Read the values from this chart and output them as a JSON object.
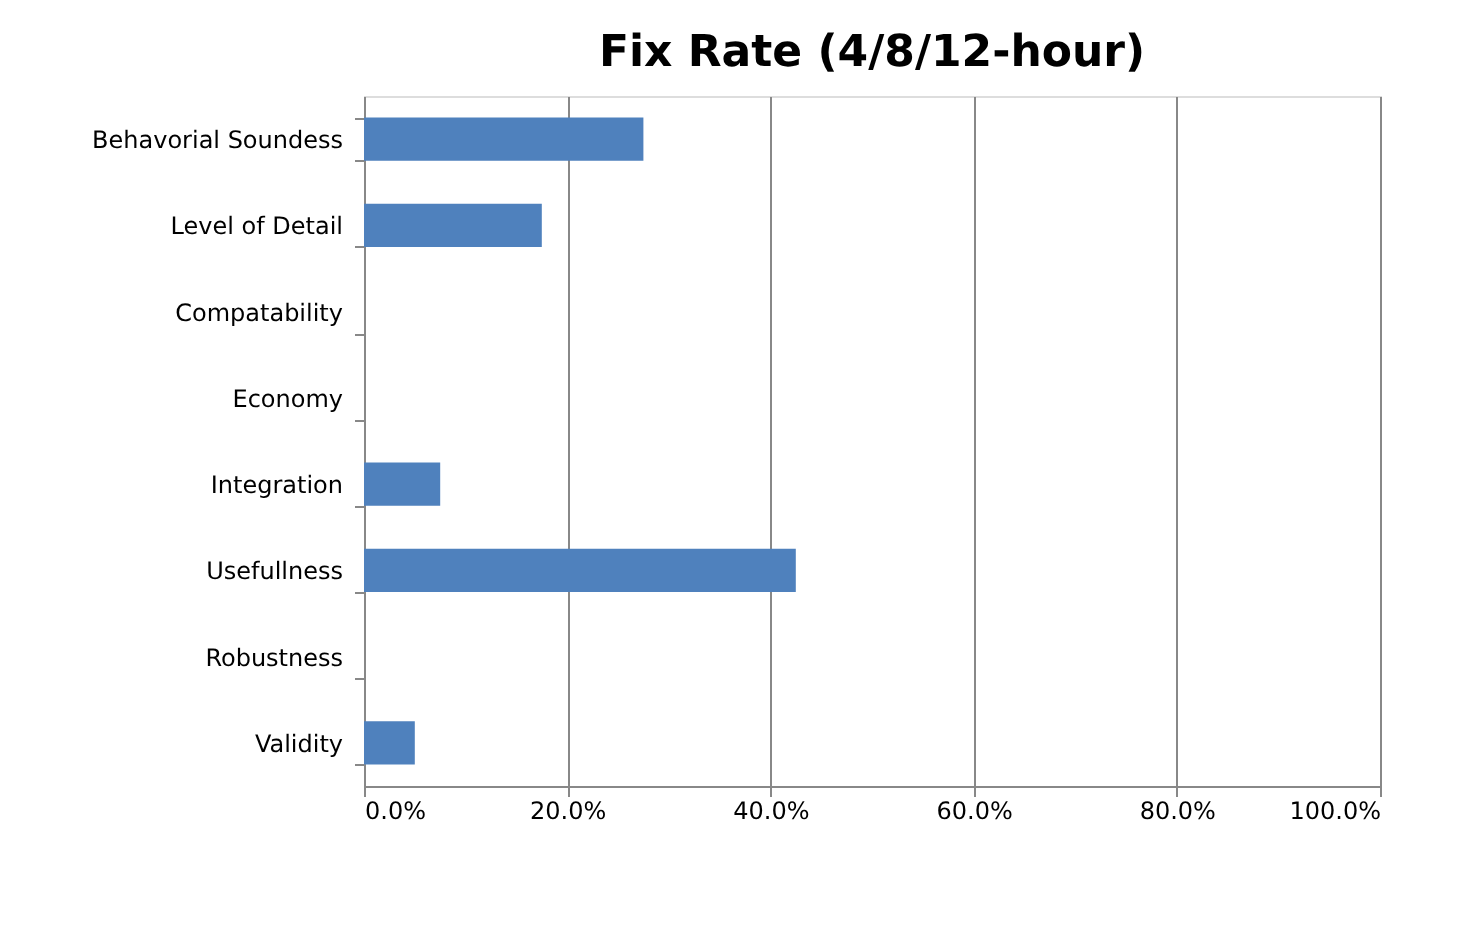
{
  "chart_data": {
    "type": "bar",
    "title": "Fix Rate (4/8/12-hour)",
    "orientation": "horizontal",
    "categories": [
      "Behavorial Soundess",
      "Level of Detail",
      "Compatability",
      "Economy",
      "Integration",
      "Usefullness",
      "Robustness",
      "Validity"
    ],
    "values": [
      27.5,
      17.5,
      0,
      0,
      7.5,
      42.5,
      0,
      5.0
    ],
    "color": "#4f81bd",
    "xlim": [
      0,
      100
    ],
    "xticks": [
      {
        "value": 0,
        "label": "0.0%"
      },
      {
        "value": 20,
        "label": "20.0%"
      },
      {
        "value": 40,
        "label": "40.0%"
      },
      {
        "value": 60,
        "label": "60.0%"
      },
      {
        "value": 80,
        "label": "80.0%"
      },
      {
        "value": 100,
        "label": "100.0%"
      }
    ],
    "grid": "x"
  }
}
